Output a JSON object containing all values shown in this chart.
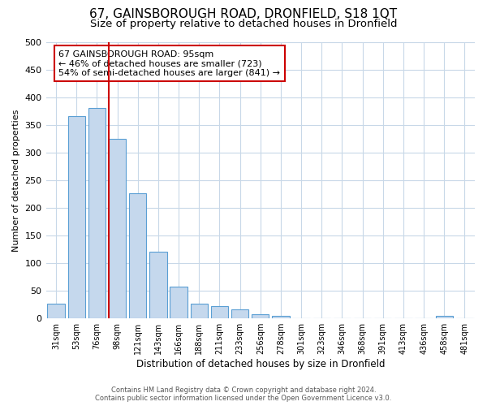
{
  "title": "67, GAINSBOROUGH ROAD, DRONFIELD, S18 1QT",
  "subtitle": "Size of property relative to detached houses in Dronfield",
  "xlabel": "Distribution of detached houses by size in Dronfield",
  "ylabel": "Number of detached properties",
  "bin_labels": [
    "31sqm",
    "53sqm",
    "76sqm",
    "98sqm",
    "121sqm",
    "143sqm",
    "166sqm",
    "188sqm",
    "211sqm",
    "233sqm",
    "256sqm",
    "278sqm",
    "301sqm",
    "323sqm",
    "346sqm",
    "368sqm",
    "391sqm",
    "413sqm",
    "436sqm",
    "458sqm",
    "481sqm"
  ],
  "bin_values": [
    27,
    365,
    380,
    325,
    226,
    120,
    58,
    27,
    22,
    16,
    7,
    4,
    1,
    0,
    0,
    0,
    0,
    0,
    0,
    5,
    0
  ],
  "bar_color": "#c5d8ed",
  "bar_edge_color": "#5a9fd4",
  "vline_bin_index": 3,
  "vline_color": "#cc0000",
  "ylim": [
    0,
    500
  ],
  "yticks": [
    0,
    50,
    100,
    150,
    200,
    250,
    300,
    350,
    400,
    450,
    500
  ],
  "annotation_box_text": "67 GAINSBOROUGH ROAD: 95sqm\n← 46% of detached houses are smaller (723)\n54% of semi-detached houses are larger (841) →",
  "annotation_box_color": "#cc0000",
  "footer_line1": "Contains HM Land Registry data © Crown copyright and database right 2024.",
  "footer_line2": "Contains public sector information licensed under the Open Government Licence v3.0.",
  "bg_color": "#ffffff",
  "grid_color": "#c8d8e8",
  "title_fontsize": 11,
  "subtitle_fontsize": 9.5
}
